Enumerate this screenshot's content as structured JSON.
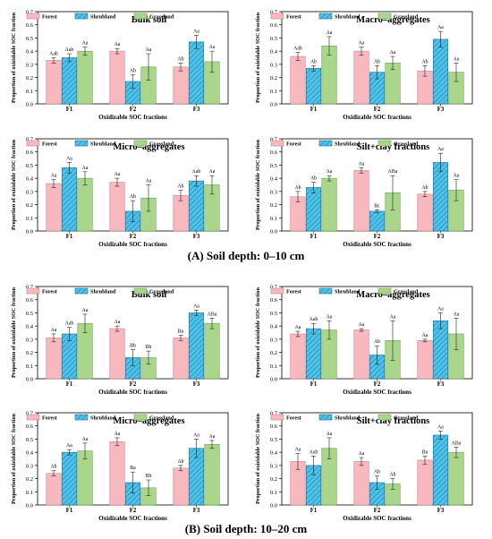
{
  "colors": {
    "forest": "#F7B8BE",
    "shrubland": "#4DC3EA",
    "grassland": "#A9D68B"
  },
  "captions": {
    "a": "(A)  Soil depth: 0–10 cm",
    "b": "(B)  Soil depth: 10–20 cm"
  },
  "chart_data": [
    {
      "type": "bar",
      "section": "A",
      "title": "Bulk soil",
      "xlabel": "Oxidizable SOC fractions",
      "ylabel": "Proportion of oxizidable SOC fraction",
      "ylim": [
        0,
        0.7
      ],
      "yticks": [
        "0.0",
        "0.1",
        "0.2",
        "0.3",
        "0.4",
        "0.5",
        "0.6",
        "0.7"
      ],
      "categories": [
        "F1",
        "F2",
        "F3"
      ],
      "legend": [
        "Forest",
        "Shrubland",
        "Grassland"
      ],
      "series": [
        {
          "name": "Forest",
          "values": [
            0.33,
            0.4,
            0.28
          ],
          "errors": [
            0.02,
            0.02,
            0.03
          ],
          "labels": [
            "Aab",
            "Aa",
            "Ab"
          ]
        },
        {
          "name": "Shrubland",
          "values": [
            0.35,
            0.17,
            0.47
          ],
          "errors": [
            0.03,
            0.05,
            0.05
          ],
          "labels": [
            "Aab",
            "Ab",
            "Aa"
          ]
        },
        {
          "name": "Grassland",
          "values": [
            0.4,
            0.28,
            0.32
          ],
          "errors": [
            0.03,
            0.1,
            0.08
          ],
          "labels": [
            "Aa",
            "Aa",
            "Aa"
          ]
        }
      ]
    },
    {
      "type": "bar",
      "section": "A",
      "title": "Macro–aggregates",
      "xlabel": "Oxidizable SOC fractions",
      "ylabel": "Proportion of oxizidable SOC fraction",
      "ylim": [
        0,
        0.7
      ],
      "yticks": [
        "0.0",
        "0.1",
        "0.2",
        "0.3",
        "0.4",
        "0.5",
        "0.6",
        "0.7"
      ],
      "categories": [
        "F1",
        "F2",
        "F3"
      ],
      "legend": [
        "Forest",
        "Shrubland",
        "Grassland"
      ],
      "series": [
        {
          "name": "Forest",
          "values": [
            0.36,
            0.4,
            0.25
          ],
          "errors": [
            0.03,
            0.03,
            0.04
          ],
          "labels": [
            "Aab",
            "Aa",
            "Ab"
          ]
        },
        {
          "name": "Shrubland",
          "values": [
            0.27,
            0.24,
            0.49
          ],
          "errors": [
            0.02,
            0.05,
            0.06
          ],
          "labels": [
            "Ab",
            "Ab",
            "Aa"
          ]
        },
        {
          "name": "Grassland",
          "values": [
            0.44,
            0.31,
            0.24
          ],
          "errors": [
            0.07,
            0.05,
            0.07
          ],
          "labels": [
            "Aa",
            "Aa",
            "Aa"
          ]
        }
      ]
    },
    {
      "type": "bar",
      "section": "A",
      "title": "Micro–aggregates",
      "xlabel": "Oxidizable SOC fractions",
      "ylabel": "Proportion of oxizidable SOC fraction",
      "ylim": [
        0,
        0.7
      ],
      "yticks": [
        "0.0",
        "0.1",
        "0.2",
        "0.3",
        "0.4",
        "0.5",
        "0.6",
        "0.7"
      ],
      "categories": [
        "F1",
        "F2",
        "F3"
      ],
      "legend": [
        "Forest",
        "Shrubland",
        "Grassland"
      ],
      "series": [
        {
          "name": "Forest",
          "values": [
            0.36,
            0.37,
            0.27
          ],
          "errors": [
            0.03,
            0.03,
            0.04
          ],
          "labels": [
            "Aa",
            "Aa",
            "Ab"
          ]
        },
        {
          "name": "Shrubland",
          "values": [
            0.48,
            0.15,
            0.38
          ],
          "errors": [
            0.04,
            0.08,
            0.04
          ],
          "labels": [
            "Aa",
            "Ab",
            "Aab"
          ]
        },
        {
          "name": "Grassland",
          "values": [
            0.4,
            0.25,
            0.35
          ],
          "errors": [
            0.05,
            0.1,
            0.07
          ],
          "labels": [
            "Aa",
            "Aa",
            "Aa"
          ]
        }
      ]
    },
    {
      "type": "bar",
      "section": "A",
      "title": "Silt+clay fractions",
      "xlabel": "Oxidizable SOC fractions",
      "ylabel": "Proportion of oxizidable SOC fraction",
      "ylim": [
        0,
        0.7
      ],
      "yticks": [
        "0.0",
        "0.1",
        "0.2",
        "0.3",
        "0.4",
        "0.5",
        "0.6",
        "0.7"
      ],
      "categories": [
        "F1",
        "F2",
        "F3"
      ],
      "legend": [
        "Forest",
        "Shrubland",
        "Grassland"
      ],
      "series": [
        {
          "name": "Forest",
          "values": [
            0.26,
            0.46,
            0.28
          ],
          "errors": [
            0.04,
            0.02,
            0.02
          ],
          "labels": [
            "Ab",
            "Aa",
            "Ab"
          ]
        },
        {
          "name": "Shrubland",
          "values": [
            0.33,
            0.15,
            0.52
          ],
          "errors": [
            0.04,
            0.01,
            0.07
          ],
          "labels": [
            "Ab",
            "Bc",
            "Aa"
          ]
        },
        {
          "name": "Grassland",
          "values": [
            0.4,
            0.29,
            0.31
          ],
          "errors": [
            0.02,
            0.13,
            0.08
          ],
          "labels": [
            "Aa",
            "ABa",
            "Aa"
          ]
        }
      ]
    },
    {
      "type": "bar",
      "section": "B",
      "title": "Bulk soil",
      "xlabel": "Oxidizable SOC fractions",
      "ylabel": "Proportion of oxizidable SOC fraction",
      "ylim": [
        0,
        0.7
      ],
      "yticks": [
        "0.0",
        "0.1",
        "0.2",
        "0.3",
        "0.4",
        "0.5",
        "0.6",
        "0.7"
      ],
      "categories": [
        "F1",
        "F2",
        "F3"
      ],
      "legend": [
        "Forest",
        "Shrubland",
        "Grassland"
      ],
      "series": [
        {
          "name": "Forest",
          "values": [
            0.31,
            0.38,
            0.31
          ],
          "errors": [
            0.03,
            0.02,
            0.02
          ],
          "labels": [
            "Aa",
            "Aa",
            "Ba"
          ]
        },
        {
          "name": "Shrubland",
          "values": [
            0.34,
            0.16,
            0.5
          ],
          "errors": [
            0.05,
            0.06,
            0.02
          ],
          "labels": [
            "Aab",
            "Bb",
            "Aa"
          ]
        },
        {
          "name": "Grassland",
          "values": [
            0.42,
            0.16,
            0.42
          ],
          "errors": [
            0.07,
            0.05,
            0.04
          ],
          "labels": [
            "Aa",
            "Bb",
            "ABa"
          ]
        }
      ]
    },
    {
      "type": "bar",
      "section": "B",
      "title": "Macro–aggregates",
      "xlabel": "Oxidizable SOC fractions",
      "ylabel": "Proportion of oxizidable SOC fraction",
      "ylim": [
        0,
        0.7
      ],
      "yticks": [
        "0.0",
        "0.1",
        "0.2",
        "0.3",
        "0.4",
        "0.5",
        "0.6",
        "0.7"
      ],
      "categories": [
        "F1",
        "F2",
        "F3"
      ],
      "legend": [
        "Forest",
        "Shrubland",
        "Grassland"
      ],
      "series": [
        {
          "name": "Forest",
          "values": [
            0.34,
            0.37,
            0.29
          ],
          "errors": [
            0.02,
            0.01,
            0.01
          ],
          "labels": [
            "Aa",
            "Aa",
            "Aa"
          ]
        },
        {
          "name": "Shrubland",
          "values": [
            0.38,
            0.18,
            0.44
          ],
          "errors": [
            0.04,
            0.07,
            0.06
          ],
          "labels": [
            "Aab",
            "Ab",
            "Aa"
          ]
        },
        {
          "name": "Grassland",
          "values": [
            0.37,
            0.29,
            0.34
          ],
          "errors": [
            0.07,
            0.15,
            0.12
          ],
          "labels": [
            "Aa",
            "Aa",
            "Aa"
          ]
        }
      ]
    },
    {
      "type": "bar",
      "section": "B",
      "title": "Micro–aggregates",
      "xlabel": "Oxidizable SOC fractions",
      "ylabel": "Proportion of oxizidable SOC fraction",
      "ylim": [
        0,
        0.7
      ],
      "yticks": [
        "0.0",
        "0.1",
        "0.2",
        "0.3",
        "0.4",
        "0.5",
        "0.6",
        "0.7"
      ],
      "categories": [
        "F1",
        "F2",
        "F3"
      ],
      "legend": [
        "Forest",
        "Shrubland",
        "Grassland"
      ],
      "series": [
        {
          "name": "Forest",
          "values": [
            0.24,
            0.48,
            0.28
          ],
          "errors": [
            0.02,
            0.03,
            0.02
          ],
          "labels": [
            "Ab",
            "Aa",
            "Ab"
          ]
        },
        {
          "name": "Shrubland",
          "values": [
            0.4,
            0.17,
            0.43
          ],
          "errors": [
            0.02,
            0.08,
            0.07
          ],
          "labels": [
            "Aa",
            "Ba",
            "Aa"
          ]
        },
        {
          "name": "Grassland",
          "values": [
            0.41,
            0.13,
            0.46
          ],
          "errors": [
            0.06,
            0.06,
            0.03
          ],
          "labels": [
            "Aa",
            "Bb",
            "Aa"
          ]
        }
      ]
    },
    {
      "type": "bar",
      "section": "B",
      "title": "Silt+clay fractions",
      "xlabel": "Oxidizable SOC fractions",
      "ylabel": "Proportion of oxizidable SOC fraction",
      "ylim": [
        0,
        0.7
      ],
      "yticks": [
        "0.0",
        "0.1",
        "0.2",
        "0.3",
        "0.4",
        "0.5",
        "0.6",
        "0.7"
      ],
      "categories": [
        "F1",
        "F2",
        "F3"
      ],
      "legend": [
        "Forest",
        "Shrubland",
        "Grassland"
      ],
      "series": [
        {
          "name": "Forest",
          "values": [
            0.33,
            0.33,
            0.34
          ],
          "errors": [
            0.06,
            0.03,
            0.03
          ],
          "labels": [
            "Aa",
            "Aa",
            "Ba"
          ]
        },
        {
          "name": "Shrubland",
          "values": [
            0.3,
            0.17,
            0.53
          ],
          "errors": [
            0.07,
            0.05,
            0.03
          ],
          "labels": [
            "Aab",
            "Ab",
            "Aa"
          ]
        },
        {
          "name": "Grassland",
          "values": [
            0.43,
            0.16,
            0.4
          ],
          "errors": [
            0.08,
            0.04,
            0.04
          ],
          "labels": [
            "Aa",
            "Ab",
            "ABa"
          ]
        }
      ]
    }
  ]
}
